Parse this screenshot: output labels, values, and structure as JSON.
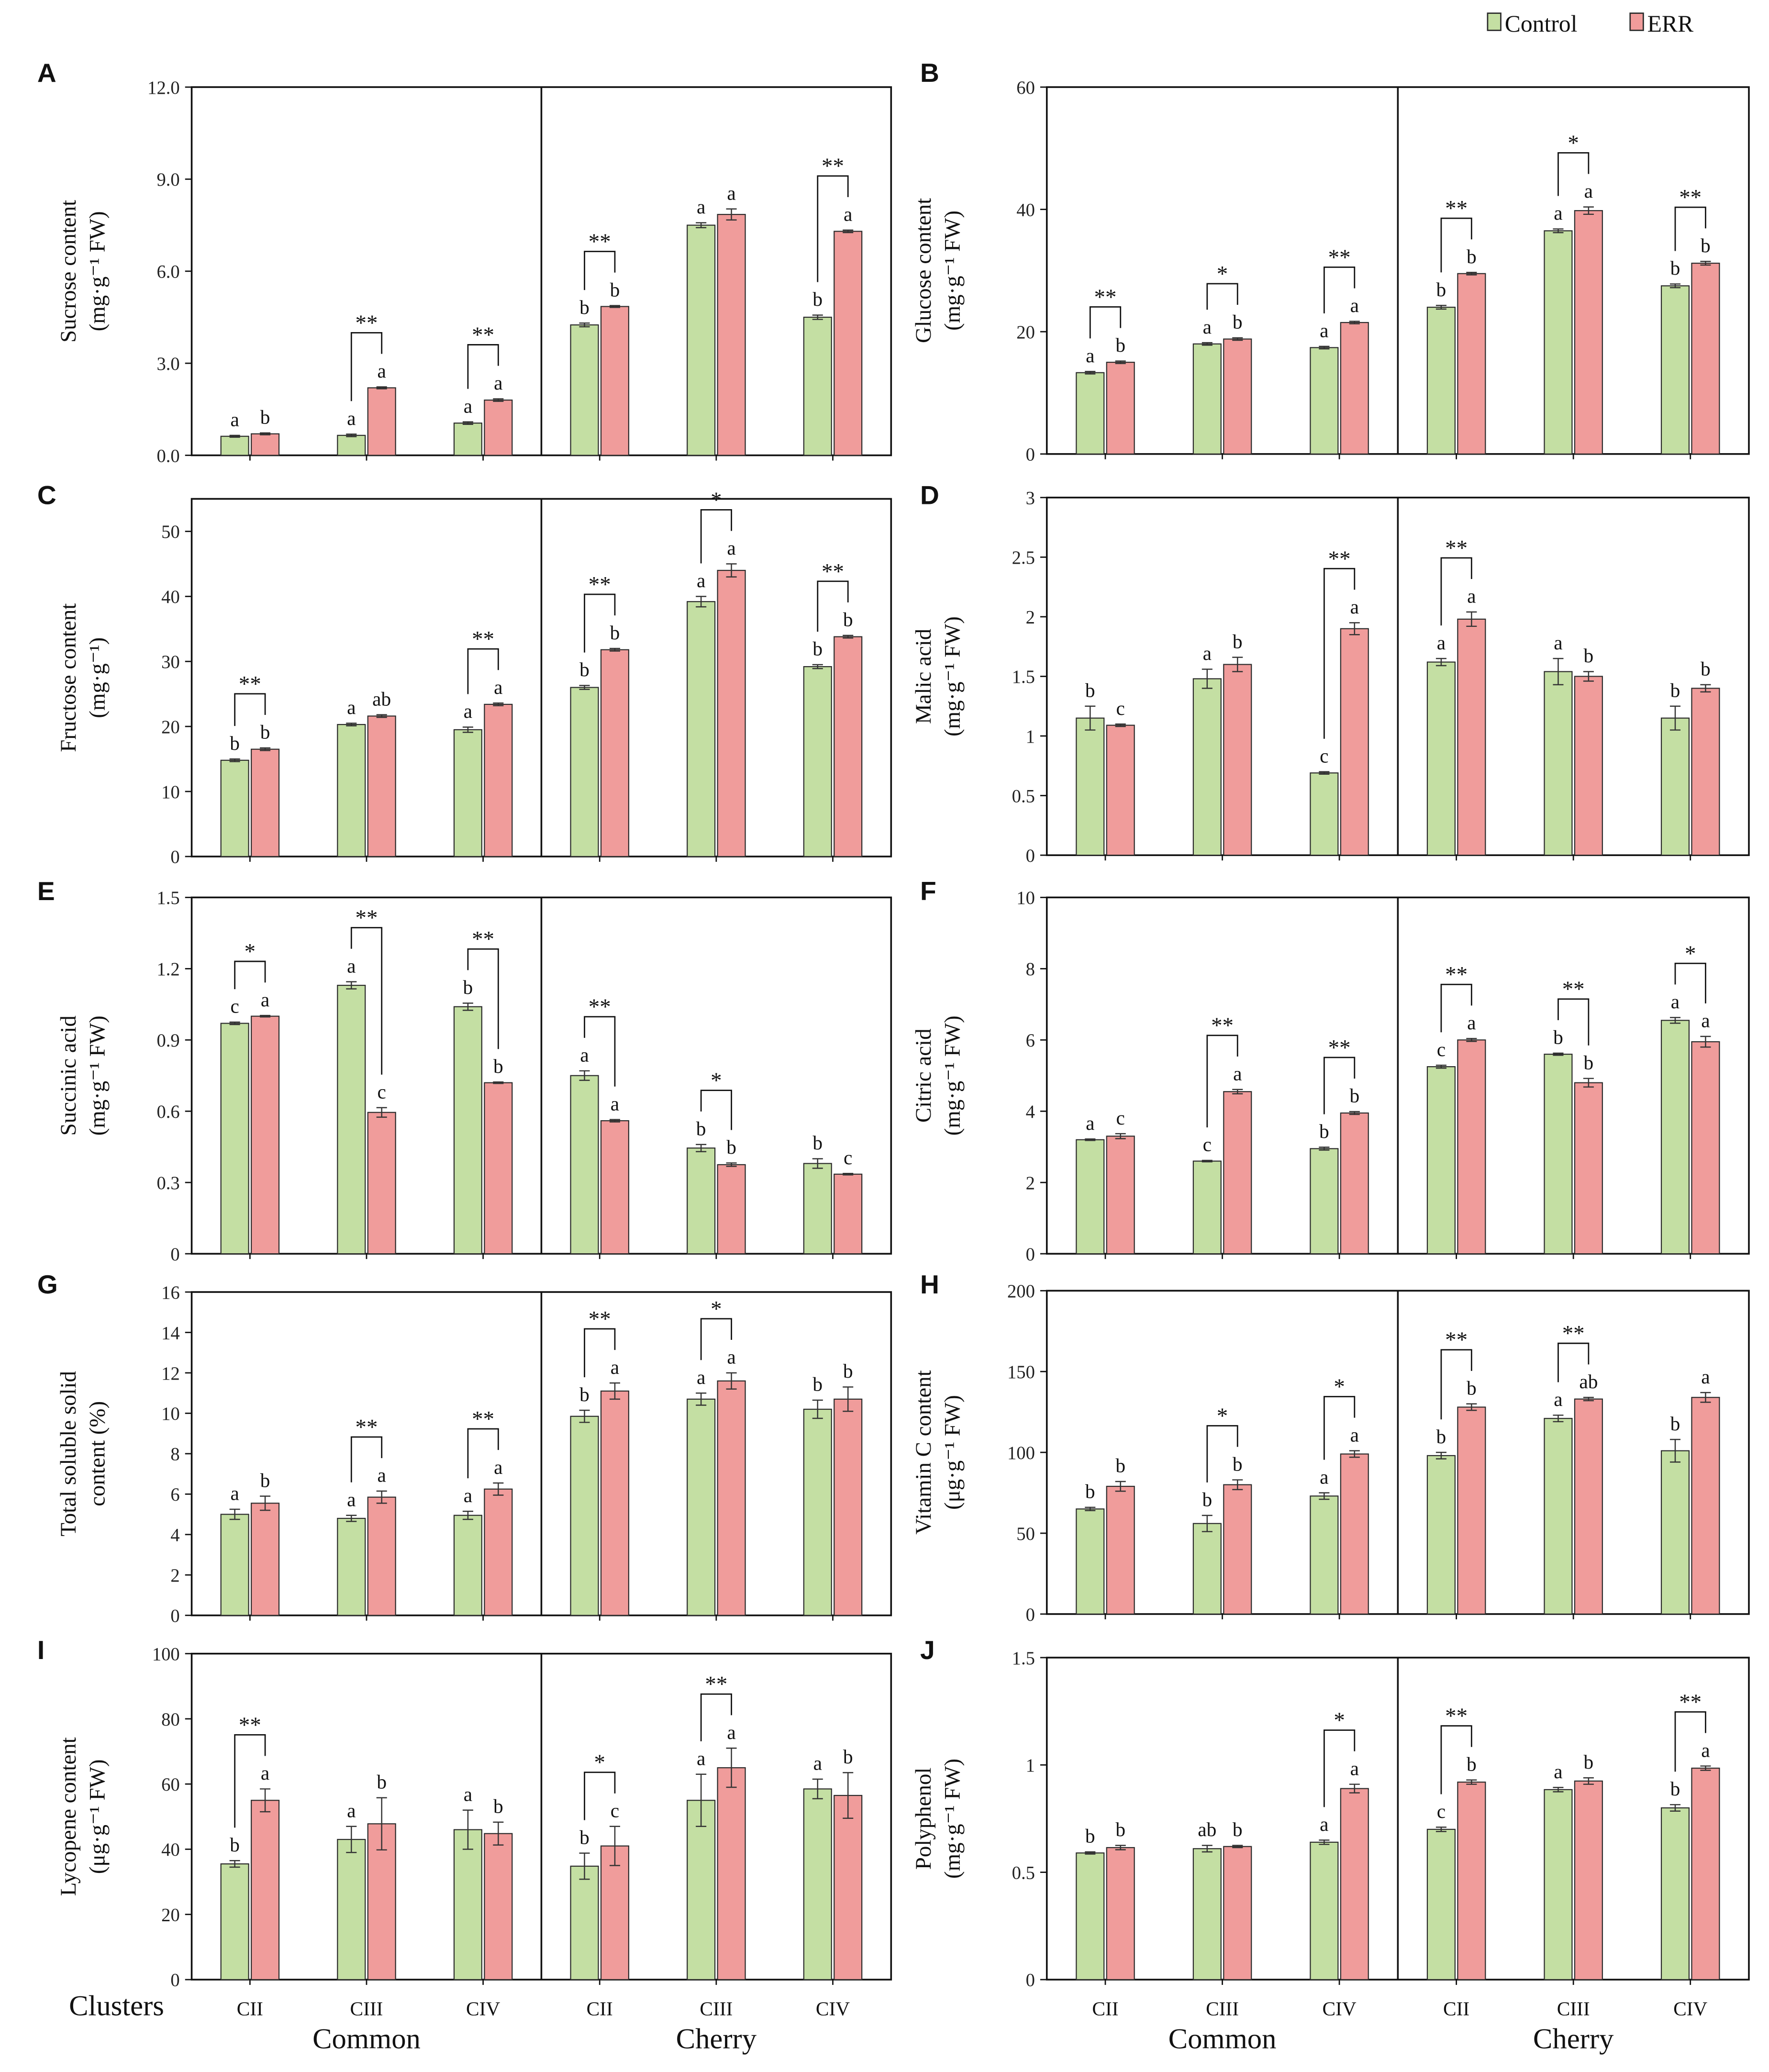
{
  "legend": {
    "control": "Control",
    "err": "ERR"
  },
  "colors": {
    "control": "#c4dfa3",
    "err": "#f09c9b",
    "stroke": "#2b2b2b"
  },
  "x_axis": {
    "clusters_label": "Clusters",
    "categories": [
      "CII",
      "CIII",
      "CIV",
      "CII",
      "CIII",
      "CIV"
    ],
    "groups": [
      "Common",
      "Cherry"
    ]
  },
  "chart_data": [
    {
      "type": "bar",
      "panel_label": "A",
      "ylabel": [
        "Sucrose content",
        "(mg·g⁻¹ FW)"
      ],
      "ylim": [
        0,
        12
      ],
      "ticks": [
        "0.0",
        "3.0",
        "6.0",
        "9.0",
        "12.0"
      ],
      "categories": [
        "CII",
        "CIII",
        "CIV",
        "CII",
        "CIII",
        "CIV"
      ],
      "groups": [
        "Common",
        "Cherry"
      ],
      "series": [
        {
          "name": "Control",
          "values": [
            0.62,
            0.65,
            1.05,
            4.25,
            7.5,
            4.5
          ],
          "errors": [
            0.03,
            0.04,
            0.04,
            0.06,
            0.08,
            0.07
          ],
          "letters": [
            "a",
            "a",
            "a",
            "b",
            "a",
            "b"
          ]
        },
        {
          "name": "ERR",
          "values": [
            0.7,
            2.2,
            1.8,
            4.85,
            7.85,
            7.3
          ],
          "errors": [
            0.03,
            0.03,
            0.04,
            0.03,
            0.18,
            0.04
          ],
          "letters": [
            "b",
            "a",
            "a",
            "b",
            "a",
            "a"
          ]
        }
      ],
      "significance": [
        "",
        "**",
        "**",
        "**",
        "",
        "**"
      ]
    },
    {
      "type": "bar",
      "panel_label": "B",
      "ylabel": [
        "Glucose content",
        "(mg·g⁻¹ FW)"
      ],
      "ylim": [
        0,
        60
      ],
      "ticks": [
        "0",
        "20",
        "40",
        "60"
      ],
      "categories": [
        "CII",
        "CIII",
        "CIV",
        "CII",
        "CIII",
        "CIV"
      ],
      "groups": [
        "Common",
        "Cherry"
      ],
      "series": [
        {
          "name": "Control",
          "values": [
            13.3,
            18,
            17.4,
            24,
            36.5,
            27.5
          ],
          "errors": [
            0.2,
            0.2,
            0.2,
            0.3,
            0.3,
            0.3
          ],
          "letters": [
            "a",
            "a",
            "a",
            "b",
            "a",
            "b"
          ]
        },
        {
          "name": "ERR",
          "values": [
            15,
            18.8,
            21.5,
            29.5,
            39.8,
            31.2
          ],
          "errors": [
            0.2,
            0.2,
            0.2,
            0.2,
            0.6,
            0.3
          ],
          "letters": [
            "b",
            "b",
            "a",
            "b",
            "a",
            "b"
          ]
        }
      ],
      "significance": [
        "**",
        "*",
        "**",
        "**",
        "*",
        "**"
      ]
    },
    {
      "type": "bar",
      "panel_label": "C",
      "ylabel": [
        "Fructose content",
        "(mg·g⁻¹)"
      ],
      "ylim": [
        0,
        55
      ],
      "ticks": [
        "0",
        "10",
        "20",
        "30",
        "40",
        "50"
      ],
      "categories": [
        "CII",
        "CIII",
        "CIV",
        "CII",
        "CIII",
        "CIV"
      ],
      "groups": [
        "Common",
        "Cherry"
      ],
      "series": [
        {
          "name": "Control",
          "values": [
            14.8,
            20.3,
            19.5,
            26,
            39.2,
            29.2
          ],
          "errors": [
            0.2,
            0.2,
            0.4,
            0.3,
            0.8,
            0.3
          ],
          "letters": [
            "b",
            "a",
            "a",
            "b",
            "a",
            "b"
          ]
        },
        {
          "name": "ERR",
          "values": [
            16.5,
            21.6,
            23.4,
            31.8,
            44,
            33.8
          ],
          "errors": [
            0.2,
            0.2,
            0.2,
            0.2,
            1.0,
            0.2
          ],
          "letters": [
            "b",
            "ab",
            "a",
            "b",
            "a",
            "b"
          ]
        }
      ],
      "significance": [
        "**",
        "",
        "**",
        "**",
        "*",
        "**"
      ]
    },
    {
      "type": "bar",
      "panel_label": "D",
      "ylabel": [
        "Malic acid",
        "(mg·g⁻¹ FW)"
      ],
      "ylim": [
        0,
        3
      ],
      "ticks": [
        "0",
        "0.5",
        "1",
        "1.5",
        "2",
        "2.5",
        "3"
      ],
      "categories": [
        "CII",
        "CIII",
        "CIV",
        "CII",
        "CIII",
        "CIV"
      ],
      "groups": [
        "Common",
        "Cherry"
      ],
      "series": [
        {
          "name": "Control",
          "values": [
            1.15,
            1.48,
            0.69,
            1.62,
            1.54,
            1.15
          ],
          "errors": [
            0.1,
            0.08,
            0.01,
            0.03,
            0.11,
            0.1
          ],
          "letters": [
            "b",
            "a",
            "c",
            "a",
            "a",
            "b"
          ]
        },
        {
          "name": "ERR",
          "values": [
            1.09,
            1.6,
            1.9,
            1.98,
            1.5,
            1.4
          ],
          "errors": [
            0.01,
            0.06,
            0.05,
            0.06,
            0.04,
            0.03
          ],
          "letters": [
            "c",
            "b",
            "a",
            "a",
            "b",
            "b"
          ]
        }
      ],
      "significance": [
        "",
        "",
        "**",
        "**",
        "",
        ""
      ]
    },
    {
      "type": "bar",
      "panel_label": "E",
      "ylabel": [
        "Succinic acid",
        "(mg·g⁻¹ FW)"
      ],
      "ylim": [
        0,
        1.5
      ],
      "ticks": [
        "0",
        "0.3",
        "0.6",
        "0.9",
        "1.2",
        "1.5"
      ],
      "categories": [
        "CII",
        "CIII",
        "CIV",
        "CII",
        "CIII",
        "CIV"
      ],
      "groups": [
        "Common",
        "Cherry"
      ],
      "series": [
        {
          "name": "Control",
          "values": [
            0.97,
            1.13,
            1.04,
            0.75,
            0.445,
            0.38
          ],
          "errors": [
            0.005,
            0.015,
            0.015,
            0.02,
            0.015,
            0.02
          ],
          "letters": [
            "c",
            "a",
            "b",
            "a",
            "b",
            "b"
          ]
        },
        {
          "name": "ERR",
          "values": [
            1.0,
            0.595,
            0.72,
            0.56,
            0.375,
            0.335
          ],
          "errors": [
            0.003,
            0.02,
            0.003,
            0.005,
            0.007,
            0.003
          ],
          "letters": [
            "a",
            "c",
            "b",
            "a",
            "b",
            "c"
          ]
        }
      ],
      "significance": [
        "*",
        "**",
        "**",
        "**",
        "*",
        ""
      ]
    },
    {
      "type": "bar",
      "panel_label": "F",
      "ylabel": [
        "Citric acid",
        "(mg·g⁻¹ FW)"
      ],
      "ylim": [
        0,
        10
      ],
      "ticks": [
        "0",
        "2",
        "4",
        "6",
        "8",
        "10"
      ],
      "categories": [
        "CII",
        "CIII",
        "CIV",
        "CII",
        "CIII",
        "CIV"
      ],
      "groups": [
        "Common",
        "Cherry"
      ],
      "series": [
        {
          "name": "Control",
          "values": [
            3.2,
            2.6,
            2.95,
            5.25,
            5.6,
            6.55
          ],
          "errors": [
            0.02,
            0.02,
            0.04,
            0.04,
            0.03,
            0.08
          ],
          "letters": [
            "a",
            "c",
            "b",
            "c",
            "b",
            "a"
          ]
        },
        {
          "name": "ERR",
          "values": [
            3.3,
            4.55,
            3.95,
            6.0,
            4.8,
            5.95
          ],
          "errors": [
            0.07,
            0.06,
            0.04,
            0.04,
            0.12,
            0.15
          ],
          "letters": [
            "c",
            "a",
            "b",
            "a",
            "b",
            "a"
          ]
        }
      ],
      "significance": [
        "",
        "**",
        "**",
        "**",
        "**",
        "*"
      ]
    },
    {
      "type": "bar",
      "panel_label": "G",
      "ylabel": [
        "Total soluble solid",
        "content (%)"
      ],
      "ylim": [
        0,
        16
      ],
      "ticks": [
        "0",
        "2",
        "4",
        "6",
        "8",
        "10",
        "12",
        "14",
        "16"
      ],
      "categories": [
        "CII",
        "CIII",
        "CIV",
        "CII",
        "CIII",
        "CIV"
      ],
      "groups": [
        "Common",
        "Cherry"
      ],
      "series": [
        {
          "name": "Control",
          "values": [
            5.0,
            4.8,
            4.95,
            9.85,
            10.7,
            10.2
          ],
          "errors": [
            0.25,
            0.15,
            0.2,
            0.3,
            0.3,
            0.45
          ],
          "letters": [
            "a",
            "a",
            "a",
            "b",
            "a",
            "b"
          ]
        },
        {
          "name": "ERR",
          "values": [
            5.55,
            5.85,
            6.25,
            11.1,
            11.6,
            10.7
          ],
          "errors": [
            0.35,
            0.3,
            0.3,
            0.4,
            0.4,
            0.6
          ],
          "letters": [
            "b",
            "a",
            "a",
            "a",
            "a",
            "b"
          ]
        }
      ],
      "significance": [
        "",
        "**",
        "**",
        "**",
        "*",
        ""
      ]
    },
    {
      "type": "bar",
      "panel_label": "H",
      "ylabel": [
        "Vitamin C content",
        "(μg·g⁻¹ FW)"
      ],
      "ylim": [
        0,
        200
      ],
      "ticks": [
        "0",
        "50",
        "100",
        "150",
        "200"
      ],
      "categories": [
        "CII",
        "CIII",
        "CIV",
        "CII",
        "CIII",
        "CIV"
      ],
      "groups": [
        "Common",
        "Cherry"
      ],
      "series": [
        {
          "name": "Control",
          "values": [
            65,
            56,
            73,
            98,
            121,
            101
          ],
          "errors": [
            1,
            5,
            2,
            2,
            2,
            7
          ],
          "letters": [
            "b",
            "b",
            "a",
            "b",
            "a",
            "b"
          ]
        },
        {
          "name": "ERR",
          "values": [
            79,
            80,
            99,
            128,
            133,
            134
          ],
          "errors": [
            3,
            3,
            2,
            2,
            1,
            3
          ],
          "letters": [
            "b",
            "b",
            "a",
            "b",
            "ab",
            "a"
          ]
        }
      ],
      "significance": [
        "",
        "*",
        "*",
        "**",
        "**",
        ""
      ]
    },
    {
      "type": "bar",
      "panel_label": "I",
      "ylabel": [
        "Lycopene content",
        "(μg·g⁻¹ FW)"
      ],
      "ylim": [
        0,
        100
      ],
      "ticks": [
        "0",
        "20",
        "40",
        "60",
        "80",
        "100"
      ],
      "categories": [
        "CII",
        "CIII",
        "CIV",
        "CII",
        "CIII",
        "CIV"
      ],
      "groups": [
        "Common",
        "Cherry"
      ],
      "series": [
        {
          "name": "Control",
          "values": [
            35.5,
            43,
            46,
            34.8,
            55,
            58.5
          ],
          "errors": [
            1,
            4,
            6,
            4,
            8,
            3
          ],
          "letters": [
            "b",
            "a",
            "a",
            "b",
            "a",
            "a"
          ]
        },
        {
          "name": "ERR",
          "values": [
            55,
            47.8,
            44.8,
            41,
            65,
            56.5
          ],
          "errors": [
            3.5,
            8,
            3.5,
            6,
            6,
            7
          ],
          "letters": [
            "a",
            "b",
            "b",
            "c",
            "a",
            "b"
          ]
        }
      ],
      "significance": [
        "**",
        "",
        "",
        "*",
        "**",
        ""
      ]
    },
    {
      "type": "bar",
      "panel_label": "J",
      "ylabel": [
        "Polyphenol",
        "(mg·g⁻¹ FW)"
      ],
      "ylim": [
        0,
        1.5
      ],
      "ticks": [
        "0",
        "0.5",
        "1",
        "1.5"
      ],
      "categories": [
        "CII",
        "CIII",
        "CIV",
        "CII",
        "CIII",
        "CIV"
      ],
      "groups": [
        "Common",
        "Cherry"
      ],
      "series": [
        {
          "name": "Control",
          "values": [
            0.59,
            0.61,
            0.64,
            0.7,
            0.885,
            0.8
          ],
          "errors": [
            0.005,
            0.015,
            0.01,
            0.01,
            0.01,
            0.015
          ],
          "letters": [
            "b",
            "ab",
            "a",
            "c",
            "a",
            "b"
          ]
        },
        {
          "name": "ERR",
          "values": [
            0.615,
            0.62,
            0.89,
            0.92,
            0.925,
            0.985
          ],
          "errors": [
            0.01,
            0.005,
            0.02,
            0.01,
            0.015,
            0.01
          ],
          "letters": [
            "b",
            "b",
            "a",
            "b",
            "b",
            "a"
          ]
        }
      ],
      "significance": [
        "",
        "",
        "*",
        "**",
        "",
        "**"
      ]
    }
  ]
}
